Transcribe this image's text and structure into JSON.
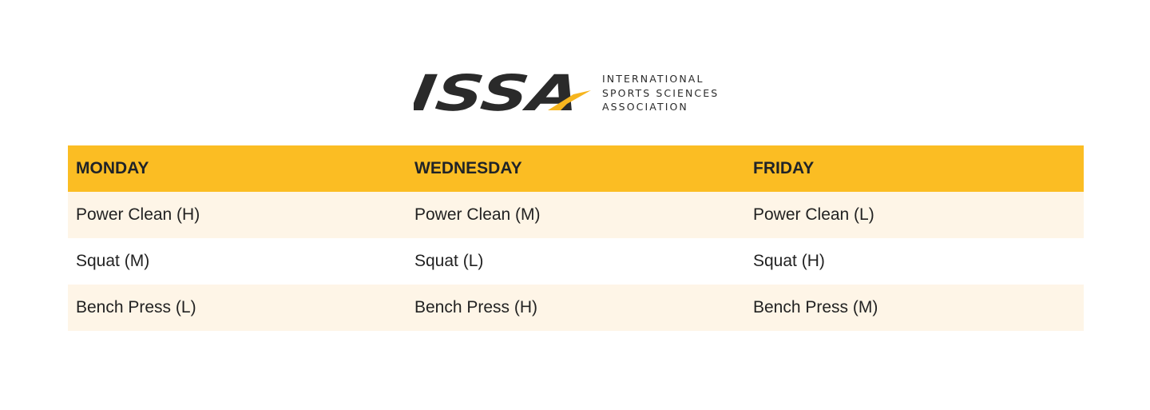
{
  "logo": {
    "wordmark": "ISSA",
    "tagline": [
      "INTERNATIONAL",
      "SPORTS SCIENCES",
      "ASSOCIATION"
    ],
    "colors": {
      "dark": "#2a2a2a",
      "accent": "#f6b51e"
    }
  },
  "table": {
    "headers": [
      "MONDAY",
      "WEDNESDAY",
      "FRIDAY"
    ],
    "rows": [
      [
        "Power Clean (H)",
        "Power Clean (M)",
        "Power Clean (L)"
      ],
      [
        "Squat (M)",
        "Squat (L)",
        "Squat (H)"
      ],
      [
        "Bench Press (L)",
        "Bench Press (H)",
        "Bench Press (M)"
      ]
    ],
    "colors": {
      "header": "#fbbd23",
      "stripe": "#fef5e7"
    }
  }
}
